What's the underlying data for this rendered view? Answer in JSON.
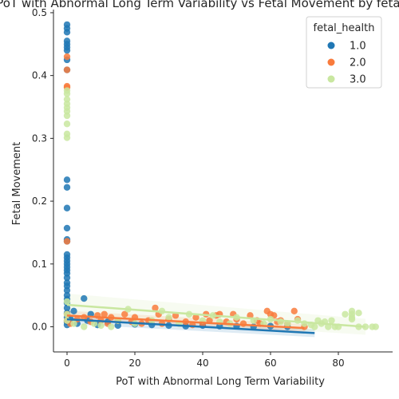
{
  "chart_data": {
    "type": "scatter",
    "title": "PoT with Abnormal Long Term Variability vs Fetal Movement by fetal_health",
    "xlabel": "PoT with Abnormal Long Term Variability",
    "ylabel": "Fetal Movement",
    "xlim": [
      -4,
      96
    ],
    "ylim": [
      -0.04,
      0.505
    ],
    "xticks": [
      0,
      20,
      40,
      60,
      80
    ],
    "yticks": [
      0.0,
      0.1,
      0.2,
      0.3,
      0.4,
      0.5
    ],
    "xtick_labels": [
      "0",
      "20",
      "40",
      "60",
      "80"
    ],
    "ytick_labels": [
      "0.0",
      "0.1",
      "0.2",
      "0.3",
      "0.4",
      "0.5"
    ],
    "grid": false,
    "legend": {
      "title": "fetal_health",
      "placement": "top-right"
    },
    "series": [
      {
        "name": "1.0",
        "color": "#1f77b4",
        "points": [
          [
            0,
            0.481
          ],
          [
            0,
            0.475
          ],
          [
            0,
            0.469
          ],
          [
            0,
            0.455
          ],
          [
            0,
            0.45
          ],
          [
            0,
            0.445
          ],
          [
            0,
            0.44
          ],
          [
            0,
            0.425
          ],
          [
            0,
            0.409
          ],
          [
            0,
            0.234
          ],
          [
            0,
            0.222
          ],
          [
            0,
            0.189
          ],
          [
            0,
            0.157
          ],
          [
            0,
            0.139
          ],
          [
            0,
            0.136
          ],
          [
            0,
            0.115
          ],
          [
            0,
            0.11
          ],
          [
            0,
            0.105
          ],
          [
            0,
            0.1
          ],
          [
            0,
            0.095
          ],
          [
            0,
            0.09
          ],
          [
            0,
            0.085
          ],
          [
            0,
            0.078
          ],
          [
            0,
            0.07
          ],
          [
            0,
            0.065
          ],
          [
            0,
            0.058
          ],
          [
            0,
            0.05
          ],
          [
            0,
            0.044
          ],
          [
            0,
            0.038
          ],
          [
            0,
            0.03
          ],
          [
            0,
            0.022
          ],
          [
            0,
            0.015
          ],
          [
            0,
            0.008
          ],
          [
            0,
            0.003
          ],
          [
            1,
            0.012
          ],
          [
            2,
            0.025
          ],
          [
            3,
            0.005
          ],
          [
            5,
            0.045
          ],
          [
            6,
            0.01
          ],
          [
            7,
            0.02
          ],
          [
            9,
            0.003
          ],
          [
            12,
            0.008
          ],
          [
            15,
            0.002
          ],
          [
            20,
            0.004
          ],
          [
            25,
            0.003
          ],
          [
            30,
            0.002
          ],
          [
            35,
            0.001
          ],
          [
            40,
            0.002
          ],
          [
            45,
            0.001
          ],
          [
            50,
            0.001
          ],
          [
            55,
            0.0
          ],
          [
            60,
            0.001
          ],
          [
            65,
            0.0
          ]
        ],
        "regression": [
          [
            0,
            0.012
          ],
          [
            73,
            -0.01
          ]
        ]
      },
      {
        "name": "2.0",
        "color": "#f97b3c",
        "points": [
          [
            0,
            0.43
          ],
          [
            0,
            0.409
          ],
          [
            0,
            0.383
          ],
          [
            0,
            0.381
          ],
          [
            0,
            0.136
          ],
          [
            0,
            0.02
          ],
          [
            0,
            0.01
          ],
          [
            1,
            0.005
          ],
          [
            3,
            0.012
          ],
          [
            5,
            0.015
          ],
          [
            7,
            0.008
          ],
          [
            9,
            0.018
          ],
          [
            10,
            0.01
          ],
          [
            11,
            0.02
          ],
          [
            12,
            0.005
          ],
          [
            13,
            0.015
          ],
          [
            15,
            0.01
          ],
          [
            17,
            0.02
          ],
          [
            19,
            0.008
          ],
          [
            20,
            0.015
          ],
          [
            22,
            0.005
          ],
          [
            24,
            0.01
          ],
          [
            26,
            0.03
          ],
          [
            27,
            0.02
          ],
          [
            28,
            0.005
          ],
          [
            30,
            0.012
          ],
          [
            32,
            0.018
          ],
          [
            35,
            0.008
          ],
          [
            37,
            0.003
          ],
          [
            38,
            0.015
          ],
          [
            40,
            0.005
          ],
          [
            41,
            0.02
          ],
          [
            42,
            0.01
          ],
          [
            44,
            0.018
          ],
          [
            45,
            0.02
          ],
          [
            47,
            0.008
          ],
          [
            49,
            0.02
          ],
          [
            50,
            0.012
          ],
          [
            52,
            0.005
          ],
          [
            54,
            0.018
          ],
          [
            56,
            0.01
          ],
          [
            57,
            0.005
          ],
          [
            59,
            0.025
          ],
          [
            60,
            0.02
          ],
          [
            61,
            0.018
          ],
          [
            62,
            0.008
          ],
          [
            63,
            0.01
          ],
          [
            65,
            0.005
          ],
          [
            67,
            0.025
          ],
          [
            68,
            0.012
          ],
          [
            70,
            0.0
          ]
        ],
        "regression": [
          [
            0,
            0.018
          ],
          [
            70,
            -0.002
          ]
        ]
      },
      {
        "name": "3.0",
        "color": "#c9e7a0",
        "points": [
          [
            0,
            0.376
          ],
          [
            0,
            0.371
          ],
          [
            0,
            0.362
          ],
          [
            0,
            0.355
          ],
          [
            0,
            0.349
          ],
          [
            0,
            0.343
          ],
          [
            0,
            0.336
          ],
          [
            0,
            0.323
          ],
          [
            0,
            0.307
          ],
          [
            0,
            0.301
          ],
          [
            0,
            0.04
          ],
          [
            0,
            0.02
          ],
          [
            0,
            0.01
          ],
          [
            2,
            0.005
          ],
          [
            5,
            0.0
          ],
          [
            8,
            0.005
          ],
          [
            10,
            0.002
          ],
          [
            13,
            0.0
          ],
          [
            15,
            0.01
          ],
          [
            18,
            0.028
          ],
          [
            20,
            0.005
          ],
          [
            25,
            0.01
          ],
          [
            28,
            0.025
          ],
          [
            30,
            0.015
          ],
          [
            33,
            0.005
          ],
          [
            36,
            0.02
          ],
          [
            40,
            0.01
          ],
          [
            43,
            0.018
          ],
          [
            45,
            0.008
          ],
          [
            48,
            0.005
          ],
          [
            50,
            0.015
          ],
          [
            55,
            0.01
          ],
          [
            58,
            0.005
          ],
          [
            60,
            0.012
          ],
          [
            63,
            0.008
          ],
          [
            65,
            0.005
          ],
          [
            68,
            0.01
          ],
          [
            70,
            0.005
          ],
          [
            72,
            0.003
          ],
          [
            73,
            0.0
          ],
          [
            74,
            0.01
          ],
          [
            75,
            0.005
          ],
          [
            76,
            0.008
          ],
          [
            77,
            0.0
          ],
          [
            78,
            0.01
          ],
          [
            79,
            0.0
          ],
          [
            80,
            0.0
          ],
          [
            82,
            0.02
          ],
          [
            84,
            0.025
          ],
          [
            84,
            0.02
          ],
          [
            84,
            0.015
          ],
          [
            84,
            0.012
          ],
          [
            86,
            0.022
          ],
          [
            86,
            0.0
          ],
          [
            88,
            0.0
          ],
          [
            90,
            0.0
          ],
          [
            91,
            0.0
          ]
        ],
        "regression": [
          [
            0,
            0.035
          ],
          [
            88,
            0.0
          ]
        ]
      }
    ]
  }
}
